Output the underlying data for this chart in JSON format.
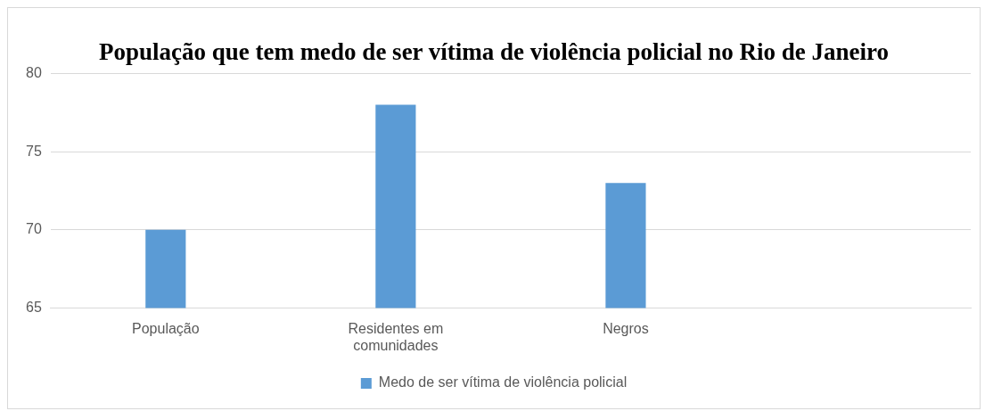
{
  "chart_data": {
    "type": "bar",
    "title": "População que tem medo de ser vítima de violência policial no Rio de Janeiro",
    "categories": [
      "População",
      "Residentes em comunidades",
      "Negros",
      null
    ],
    "series": [
      {
        "name": "Medo de ser vítima de violência policial",
        "color": "#5b9bd5",
        "values": [
          70,
          78,
          73,
          null
        ]
      }
    ],
    "ylim": [
      65,
      80
    ],
    "yticks": [
      65,
      70,
      75,
      80
    ],
    "grid": "y",
    "legend": "bottom"
  }
}
